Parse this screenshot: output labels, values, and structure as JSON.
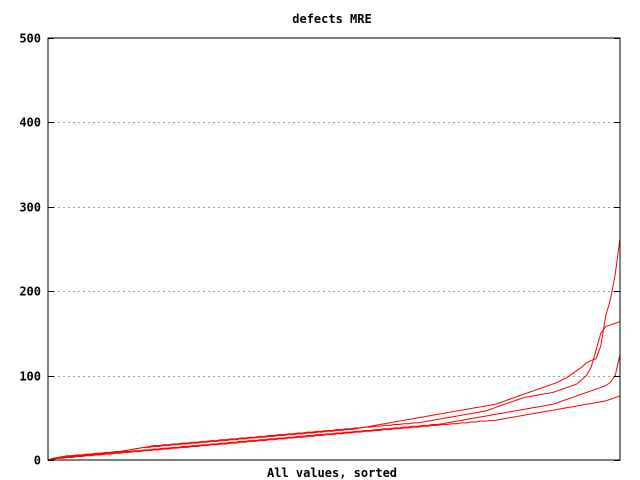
{
  "chart_data": {
    "type": "line",
    "title": "defects MRE",
    "xlabel": "All values, sorted",
    "ylabel": "",
    "ylim": [
      0,
      500
    ],
    "yticks": [
      0,
      100,
      200,
      300,
      400,
      500
    ],
    "grid": "horizontal-dotted",
    "legend": "none",
    "line_color": "#ff0000",
    "x_note_points": 120,
    "series": [
      {
        "values": [
          0,
          2,
          3,
          4,
          5,
          5,
          6,
          6,
          7,
          7,
          8,
          8,
          9,
          9,
          10,
          10,
          11,
          12,
          13,
          14,
          15,
          15,
          16,
          16,
          17,
          17,
          18,
          18,
          19,
          19,
          20,
          20,
          21,
          21,
          22,
          22,
          23,
          23,
          24,
          24,
          25,
          25,
          26,
          26,
          27,
          27,
          28,
          28,
          29,
          29,
          30,
          30,
          31,
          31,
          32,
          32,
          33,
          33,
          34,
          34,
          35,
          35,
          36,
          36,
          37,
          38,
          39,
          40,
          41,
          42,
          43,
          44,
          45,
          46,
          47,
          48,
          49,
          50,
          51,
          52,
          53,
          54,
          55,
          56,
          57,
          58,
          59,
          60,
          61,
          62,
          63,
          64,
          65,
          66,
          68,
          70,
          72,
          74,
          76,
          78,
          80,
          82,
          84,
          86,
          88,
          90,
          92,
          95,
          98,
          102,
          106,
          110,
          115,
          118,
          120,
          135,
          170,
          190,
          220,
          262
        ]
      },
      {
        "values": [
          0,
          1,
          2,
          3,
          4,
          5,
          5,
          6,
          6,
          7,
          7,
          8,
          8,
          9,
          9,
          10,
          11,
          12,
          13,
          14,
          15,
          16,
          17,
          17,
          18,
          18,
          19,
          19,
          20,
          20,
          21,
          21,
          22,
          22,
          23,
          23,
          24,
          24,
          25,
          25,
          26,
          26,
          27,
          27,
          28,
          28,
          29,
          29,
          30,
          30,
          31,
          31,
          32,
          32,
          33,
          33,
          34,
          34,
          35,
          35,
          36,
          36,
          37,
          37,
          38,
          38,
          39,
          39,
          40,
          40,
          41,
          41,
          42,
          42,
          43,
          43,
          44,
          44,
          45,
          46,
          47,
          48,
          49,
          50,
          51,
          52,
          53,
          54,
          55,
          56,
          57,
          58,
          60,
          62,
          64,
          66,
          68,
          70,
          72,
          74,
          75,
          76,
          77,
          78,
          79,
          80,
          82,
          84,
          86,
          88,
          90,
          95,
          100,
          110,
          130,
          150,
          158,
          160,
          162,
          164
        ]
      },
      {
        "values": [
          0,
          1,
          2,
          3,
          4,
          4,
          5,
          5,
          6,
          6,
          7,
          7,
          8,
          8,
          9,
          9,
          10,
          10,
          11,
          11,
          12,
          12,
          13,
          13,
          14,
          14,
          15,
          15,
          16,
          16,
          17,
          17,
          18,
          18,
          19,
          19,
          20,
          20,
          21,
          21,
          22,
          22,
          23,
          23,
          24,
          24,
          25,
          25,
          26,
          26,
          27,
          27,
          28,
          28,
          29,
          29,
          30,
          30,
          31,
          31,
          32,
          32,
          33,
          33,
          34,
          34,
          35,
          35,
          36,
          36,
          37,
          37,
          38,
          38,
          39,
          39,
          40,
          40,
          41,
          41,
          42,
          42,
          43,
          44,
          45,
          46,
          47,
          48,
          49,
          50,
          51,
          52,
          53,
          54,
          55,
          56,
          57,
          58,
          59,
          60,
          61,
          62,
          63,
          64,
          65,
          66,
          68,
          70,
          72,
          74,
          76,
          78,
          80,
          82,
          84,
          86,
          88,
          92,
          100,
          125
        ]
      },
      {
        "values": [
          0,
          1,
          2,
          2,
          3,
          3,
          4,
          4,
          5,
          5,
          6,
          6,
          7,
          7,
          8,
          8,
          9,
          9,
          10,
          10,
          11,
          11,
          12,
          12,
          13,
          13,
          14,
          14,
          15,
          15,
          16,
          16,
          17,
          17,
          18,
          18,
          19,
          19,
          20,
          20,
          21,
          21,
          22,
          22,
          23,
          23,
          24,
          24,
          25,
          25,
          26,
          26,
          27,
          27,
          28,
          28,
          29,
          29,
          30,
          30,
          31,
          31,
          32,
          32,
          33,
          33,
          34,
          34,
          35,
          35,
          36,
          36,
          37,
          37,
          38,
          38,
          39,
          39,
          40,
          40,
          41,
          41,
          42,
          42,
          43,
          43,
          44,
          44,
          45,
          45,
          46,
          46,
          47,
          47,
          48,
          49,
          50,
          51,
          52,
          53,
          54,
          55,
          56,
          57,
          58,
          59,
          60,
          61,
          62,
          63,
          64,
          65,
          66,
          67,
          68,
          69,
          70,
          72,
          74,
          76
        ]
      }
    ]
  }
}
